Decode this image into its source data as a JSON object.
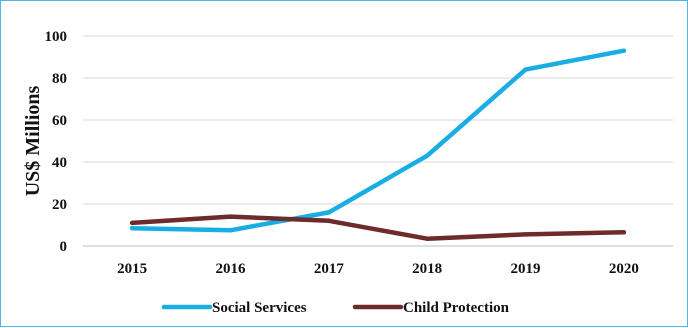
{
  "chart_data": {
    "type": "line",
    "title": "",
    "xlabel": "",
    "ylabel": "US$ Millions",
    "categories": [
      "2015",
      "2016",
      "2017",
      "2018",
      "2019",
      "2020"
    ],
    "ylim": [
      0,
      100
    ],
    "yticks": [
      0,
      20,
      40,
      60,
      80,
      100
    ],
    "grid": "horizontal",
    "legend_position": "bottom",
    "series": [
      {
        "name": "Social Services",
        "color": "#19ADE4",
        "values": [
          8.5,
          7.5,
          16,
          43,
          84,
          93
        ]
      },
      {
        "name": "Child Protection",
        "color": "#6E2B2B",
        "values": [
          11,
          14,
          12,
          3.5,
          5.5,
          6.5
        ]
      }
    ]
  }
}
